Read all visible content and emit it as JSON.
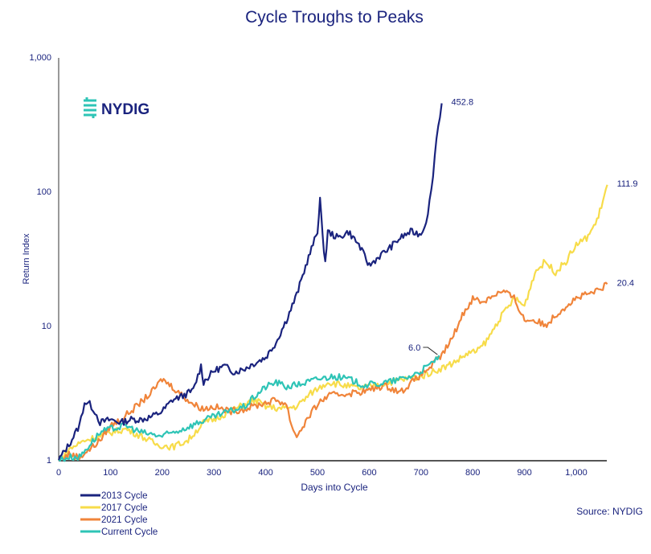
{
  "chart_data": {
    "type": "line",
    "title": "Cycle Troughs to Peaks",
    "xlabel": "Days into Cycle",
    "ylabel": "Return Index",
    "yscale": "log",
    "xlim": [
      0,
      1060
    ],
    "ylim": [
      1,
      1000
    ],
    "xticks": [
      0,
      100,
      200,
      300,
      400,
      500,
      600,
      700,
      800,
      900,
      1000
    ],
    "xtick_labels": [
      "0",
      "100",
      "200",
      "300",
      "400",
      "500",
      "600",
      "700",
      "800",
      "900",
      "1,000"
    ],
    "yticks": [
      1,
      10,
      100,
      1000
    ],
    "ytick_labels": [
      "1",
      "10",
      "100",
      "1,000"
    ],
    "grid": false,
    "legend_position": "bottom-left",
    "source": "Source: NYDIG",
    "logo": "NYDIG",
    "series": [
      {
        "name": "2013 Cycle",
        "color": "#1a237e",
        "x": [
          0,
          20,
          40,
          50,
          60,
          70,
          80,
          100,
          120,
          140,
          160,
          180,
          200,
          220,
          240,
          260,
          275,
          280,
          300,
          320,
          340,
          360,
          380,
          400,
          420,
          440,
          460,
          480,
          500,
          505,
          510,
          515,
          520,
          540,
          560,
          580,
          600,
          620,
          640,
          660,
          680,
          700,
          710,
          720,
          730,
          740
        ],
        "y": [
          1,
          1.3,
          1.8,
          2.7,
          2.6,
          2.3,
          1.9,
          2.0,
          1.9,
          2.0,
          2.0,
          2.1,
          2.3,
          2.8,
          3.0,
          3.3,
          5.0,
          3.8,
          4.6,
          5.0,
          4.5,
          4.8,
          5.3,
          5.8,
          7.5,
          11,
          17,
          30,
          50,
          90,
          45,
          30,
          50,
          45,
          50,
          40,
          28,
          33,
          38,
          45,
          50,
          48,
          60,
          100,
          250,
          452.8
        ]
      },
      {
        "name": "2017 Cycle",
        "color": "#f7dc4a",
        "x": [
          0,
          20,
          50,
          80,
          100,
          130,
          160,
          190,
          220,
          250,
          280,
          300,
          330,
          360,
          380,
          400,
          430,
          460,
          490,
          520,
          550,
          580,
          610,
          640,
          670,
          700,
          720,
          750,
          770,
          790,
          810,
          830,
          850,
          870,
          880,
          900,
          920,
          940,
          960,
          980,
          1000,
          1020,
          1040,
          1060
        ],
        "y": [
          1,
          1.2,
          1.4,
          1.5,
          1.6,
          1.7,
          1.5,
          1.3,
          1.25,
          1.4,
          1.9,
          2.0,
          2.3,
          2.6,
          2.8,
          2.5,
          2.4,
          2.5,
          3.2,
          3.8,
          3.6,
          3.4,
          3.6,
          3.8,
          4.0,
          4.2,
          4.5,
          5.0,
          5.5,
          6.2,
          6.5,
          8,
          11,
          14,
          16,
          14,
          25,
          30,
          25,
          30,
          40,
          45,
          60,
          111.9
        ]
      },
      {
        "name": "2021 Cycle",
        "color": "#f0843a",
        "x": [
          0,
          20,
          40,
          60,
          80,
          100,
          120,
          150,
          180,
          200,
          220,
          240,
          260,
          280,
          300,
          330,
          360,
          390,
          420,
          440,
          450,
          460,
          480,
          500,
          520,
          550,
          580,
          600,
          630,
          660,
          690,
          720,
          740,
          760,
          780,
          800,
          820,
          840,
          860,
          880,
          900,
          920,
          940,
          960,
          980,
          1000,
          1020,
          1040,
          1060
        ],
        "y": [
          1,
          1.1,
          1.05,
          1.2,
          1.4,
          1.8,
          2.0,
          2.5,
          3.2,
          4.0,
          3.5,
          3.0,
          2.6,
          2.4,
          2.5,
          2.3,
          2.4,
          2.6,
          2.8,
          2.6,
          1.8,
          1.5,
          2.0,
          2.6,
          3.0,
          3.1,
          3.2,
          3.3,
          3.6,
          3.2,
          4.0,
          5.0,
          6.0,
          8.0,
          12,
          16,
          15,
          17,
          18,
          16,
          11,
          11,
          10,
          12,
          14,
          16,
          17,
          18,
          20.4
        ]
      },
      {
        "name": "Current Cycle",
        "color": "#2ec4b6",
        "x": [
          0,
          20,
          40,
          60,
          80,
          100,
          130,
          160,
          200,
          240,
          270,
          300,
          330,
          360,
          380,
          400,
          420,
          440,
          470,
          500,
          530,
          560,
          590,
          620,
          650,
          680,
          700,
          720,
          735
        ],
        "y": [
          1,
          1.05,
          1.05,
          1.3,
          1.6,
          1.7,
          1.8,
          1.6,
          1.5,
          1.7,
          1.9,
          2.1,
          2.3,
          2.5,
          3.0,
          3.5,
          3.8,
          3.5,
          3.7,
          4.0,
          4.2,
          4.0,
          3.6,
          3.7,
          3.9,
          4.2,
          4.6,
          5.2,
          6.0
        ]
      }
    ],
    "annotations": [
      {
        "text": "452.8",
        "x": 740,
        "y": 452.8
      },
      {
        "text": "111.9",
        "x": 1060,
        "y": 111.9
      },
      {
        "text": "20.4",
        "x": 1060,
        "y": 20.4
      },
      {
        "text": "6.0",
        "x": 735,
        "y": 6.0
      }
    ]
  }
}
